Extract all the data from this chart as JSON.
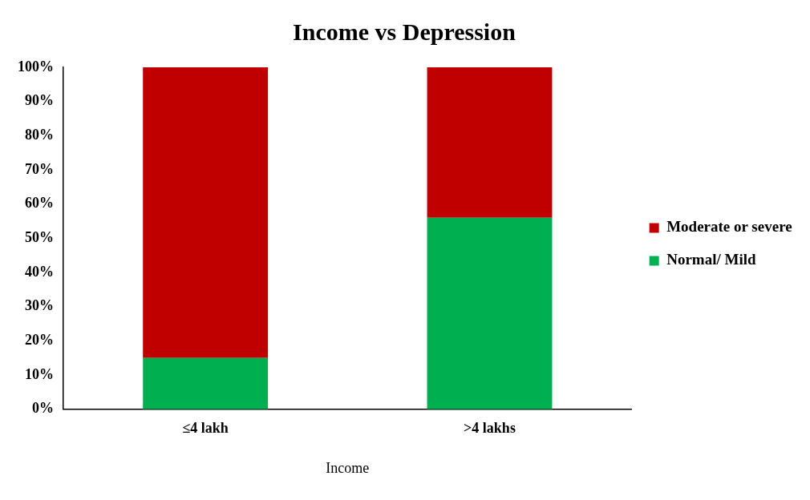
{
  "chart_data": {
    "type": "bar",
    "title": "Income vs Depression",
    "xlabel": "Income",
    "categories": [
      "≤4 lakh",
      ">4 lakhs"
    ],
    "stacked": true,
    "legend": "right",
    "grid": false,
    "ylim": [
      0,
      100
    ],
    "yticks": [
      {
        "value": 0,
        "label": "0%"
      },
      {
        "value": 10,
        "label": "10%"
      },
      {
        "value": 20,
        "label": "20%"
      },
      {
        "value": 30,
        "label": "30%"
      },
      {
        "value": 40,
        "label": "40%"
      },
      {
        "value": 50,
        "label": "50%"
      },
      {
        "value": 60,
        "label": "60%"
      },
      {
        "value": 70,
        "label": "70%"
      },
      {
        "value": 80,
        "label": "80%"
      },
      {
        "value": 90,
        "label": "90%"
      },
      {
        "value": 100,
        "label": "100%"
      }
    ],
    "series": [
      {
        "name": "Normal/ Mild",
        "color": "#00b050",
        "values": [
          15,
          56
        ]
      },
      {
        "name": "Moderate or severe",
        "color": "#c00000",
        "values": [
          85,
          44
        ]
      }
    ]
  }
}
